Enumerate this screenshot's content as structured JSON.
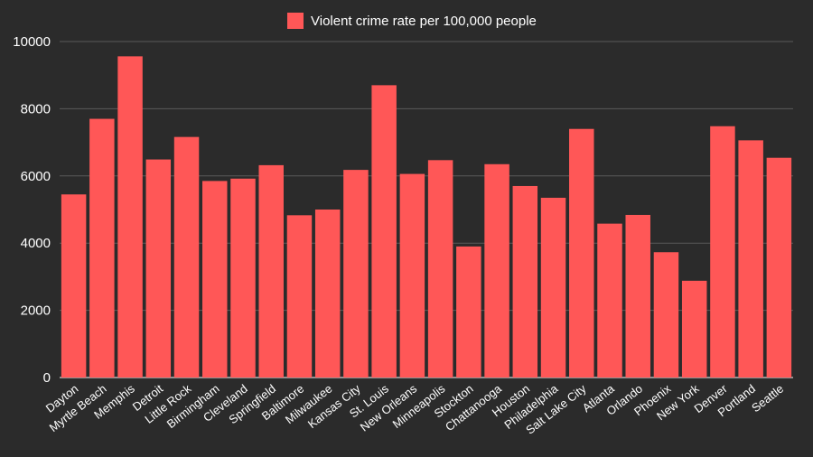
{
  "chart_data": {
    "type": "bar",
    "categories": [
      "Dayton",
      "Myrtle Beach",
      "Memphis",
      "Detroit",
      "Little Rock",
      "Birmingham",
      "Cleveland",
      "Springfield",
      "Baltimore",
      "Milwaukee",
      "Kansas City",
      "St. Louis",
      "New Orleans",
      "Minneapolis",
      "Stockton",
      "Chattanooga",
      "Houston",
      "Philadelphia",
      "Salt Lake City",
      "Atlanta",
      "Orlando",
      "Phoenix",
      "New York",
      "Denver",
      "Portland",
      "Seattle"
    ],
    "series": [
      {
        "name": "Violent crime rate per 100,000 people",
        "values": [
          5450,
          7700,
          9560,
          6490,
          7160,
          5850,
          5920,
          6320,
          4830,
          5000,
          6180,
          8700,
          6060,
          6470,
          3900,
          6350,
          5700,
          5350,
          7400,
          4580,
          4840,
          3730,
          2880,
          7480,
          7060,
          6540
        ],
        "color": "#ff5757"
      }
    ],
    "ylim": [
      0,
      10000
    ],
    "yticks": [
      0,
      2000,
      4000,
      6000,
      8000,
      10000
    ],
    "xlabel": "",
    "ylabel": "",
    "grid": true,
    "legend": "top-center"
  }
}
